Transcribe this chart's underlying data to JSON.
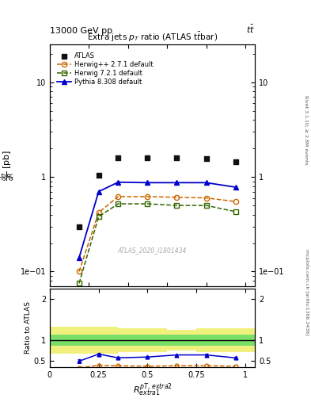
{
  "top_label_left": "13000 GeV pp",
  "top_label_right": "tt",
  "title": "Extra jets p_T ratio (ATLAS ttbar)",
  "watermark": "ATLAS_2020_I1801434",
  "right_label1": "Rivet 3.1.10; ≥ 2.8M events",
  "right_label2": "mcplots.cern.ch [arXiv:1306.3436]",
  "x_atlas": [
    0.15,
    0.25,
    0.35,
    0.5,
    0.65,
    0.8,
    0.95
  ],
  "y_atlas": [
    0.3,
    1.05,
    1.6,
    1.6,
    1.6,
    1.55,
    1.45
  ],
  "x_herwig2": [
    0.15,
    0.25,
    0.35,
    0.5,
    0.65,
    0.8,
    0.95
  ],
  "y_herwig2": [
    0.1,
    0.42,
    0.62,
    0.62,
    0.61,
    0.6,
    0.55
  ],
  "x_herwig7": [
    0.15,
    0.25,
    0.35,
    0.5,
    0.65,
    0.8,
    0.95
  ],
  "y_herwig7": [
    0.075,
    0.38,
    0.52,
    0.52,
    0.5,
    0.5,
    0.43
  ],
  "x_pythia": [
    0.15,
    0.25,
    0.35,
    0.5,
    0.65,
    0.8,
    0.95
  ],
  "y_pythia": [
    0.14,
    0.7,
    0.88,
    0.87,
    0.87,
    0.87,
    0.78
  ],
  "ratio_x": [
    0.15,
    0.25,
    0.35,
    0.5,
    0.65,
    0.8,
    0.95
  ],
  "ratio_pythia": [
    0.5,
    0.67,
    0.58,
    0.6,
    0.65,
    0.65,
    0.58
  ],
  "ratio_pythia_err": [
    0.05,
    0.03,
    0.02,
    0.02,
    0.02,
    0.03,
    0.02
  ],
  "ratio_herwig2": [
    0.34,
    0.4,
    0.39,
    0.38,
    0.39,
    0.39,
    0.38
  ],
  "band_x_yellow": [
    0.0,
    0.2,
    0.35,
    0.6,
    0.75,
    1.05
  ],
  "band_yellow_lo": [
    0.68,
    0.68,
    0.72,
    0.75,
    0.72,
    0.72
  ],
  "band_yellow_hi": [
    1.32,
    1.32,
    1.28,
    1.25,
    1.28,
    1.28
  ],
  "band_x_green": [
    0.0,
    0.2,
    0.35,
    0.6,
    0.75,
    1.05
  ],
  "band_green_lo": [
    0.87,
    0.87,
    0.87,
    0.87,
    0.87,
    0.87
  ],
  "band_green_hi": [
    1.13,
    1.13,
    1.13,
    1.13,
    1.13,
    1.13
  ],
  "color_atlas": "#111111",
  "color_herwig2": "#cc6600",
  "color_herwig7": "#336600",
  "color_pythia": "#0000cc",
  "color_green_band": "#66dd66",
  "color_yellow_band": "#eeee66",
  "ylim_main": [
    0.07,
    25
  ],
  "ylim_ratio": [
    0.35,
    2.25
  ],
  "xlim": [
    0.0,
    1.05
  ]
}
